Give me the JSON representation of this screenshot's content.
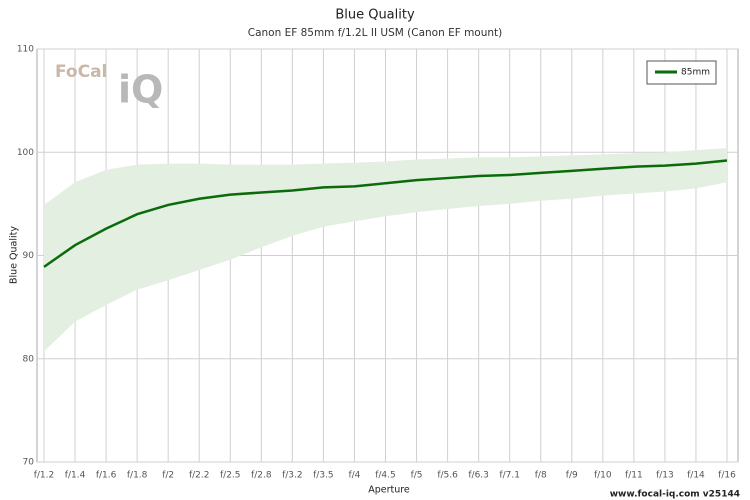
{
  "chart_data": {
    "type": "line",
    "title": "Blue Quality",
    "subtitle": "Canon EF 85mm f/1.2L II USM (Canon EF mount)",
    "x_label": "Aperture",
    "y_label": "Blue Quality",
    "logo": [
      "FoCal",
      "iQ"
    ],
    "footer": "www.focal-iq.com  v25144",
    "categories": [
      "f/1.2",
      "f/1.4",
      "f/1.6",
      "f/1.8",
      "f/2",
      "f/2.2",
      "f/2.5",
      "f/2.8",
      "f/3.2",
      "f/3.5",
      "f/4",
      "f/4.5",
      "f/5",
      "f/5.6",
      "f/6.3",
      "f/7.1",
      "f/8",
      "f/9",
      "f/10",
      "f/11",
      "f/13",
      "f/14",
      "f/16"
    ],
    "series": [
      {
        "name": "85mm",
        "color": "#0b6b0b",
        "values": [
          88.9,
          91.0,
          92.6,
          94.0,
          94.9,
          95.5,
          95.9,
          96.1,
          96.3,
          96.6,
          96.7,
          97.0,
          97.3,
          97.5,
          97.7,
          97.8,
          98.0,
          98.2,
          98.4,
          98.6,
          98.7,
          98.9,
          99.2
        ]
      }
    ],
    "band": {
      "color": "#e3efe0",
      "upper": [
        94.9,
        97.1,
        98.3,
        98.8,
        98.9,
        98.9,
        98.8,
        98.8,
        98.8,
        98.9,
        99.0,
        99.1,
        99.3,
        99.4,
        99.5,
        99.5,
        99.6,
        99.7,
        99.8,
        99.9,
        100.0,
        100.2,
        100.4
      ],
      "lower": [
        80.7,
        83.6,
        85.2,
        86.7,
        87.6,
        88.6,
        89.6,
        90.8,
        91.9,
        92.8,
        93.3,
        93.8,
        94.2,
        94.5,
        94.8,
        95.0,
        95.3,
        95.5,
        95.8,
        96.0,
        96.2,
        96.5,
        97.1
      ]
    },
    "ylim": [
      70,
      110
    ],
    "yticks": [
      70,
      80,
      90,
      100,
      110
    ],
    "grid": true,
    "legend": "top-right"
  }
}
